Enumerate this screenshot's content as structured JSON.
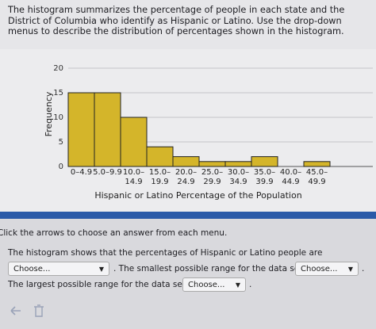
{
  "question": "The histogram summarizes the percentage of people in each state and the District of Columbia who identify as Hispanic or Latino. Use the drop-down menus to describe the distribution of percentages shown in the histogram.",
  "chart_data": {
    "type": "bar",
    "x_label": "Hispanic or Latino Percentage of the Population",
    "y_label": "Frequency",
    "categories": [
      "0–4.9",
      "5.0–9.9",
      "10.0–14.9",
      "15.0–19.9",
      "20.0–24.9",
      "25.0–29.9",
      "30.0–34.9",
      "35.0–39.9",
      "40.0–44.9",
      "45.0–49.9"
    ],
    "values": [
      15,
      15,
      10,
      4,
      2,
      1,
      1,
      2,
      0,
      1
    ],
    "color": "#d4b52a",
    "ylim": [
      0,
      20
    ],
    "yticks": [
      0,
      5,
      10,
      15,
      20
    ],
    "grid": true
  },
  "instructions": "Click the arrows to choose an answer from each menu.",
  "line_1": {
    "text": "The histogram shows that the percentages of Hispanic or Latino people are"
  },
  "line_2": {
    "dropdown_1": "Choose...",
    "text": ". The smallest possible range for the data set is",
    "dropdown_2": "Choose...",
    "end": "."
  },
  "line_3": {
    "text": "The largest possible range for the data set is",
    "dropdown": "Choose...",
    "end": "."
  }
}
